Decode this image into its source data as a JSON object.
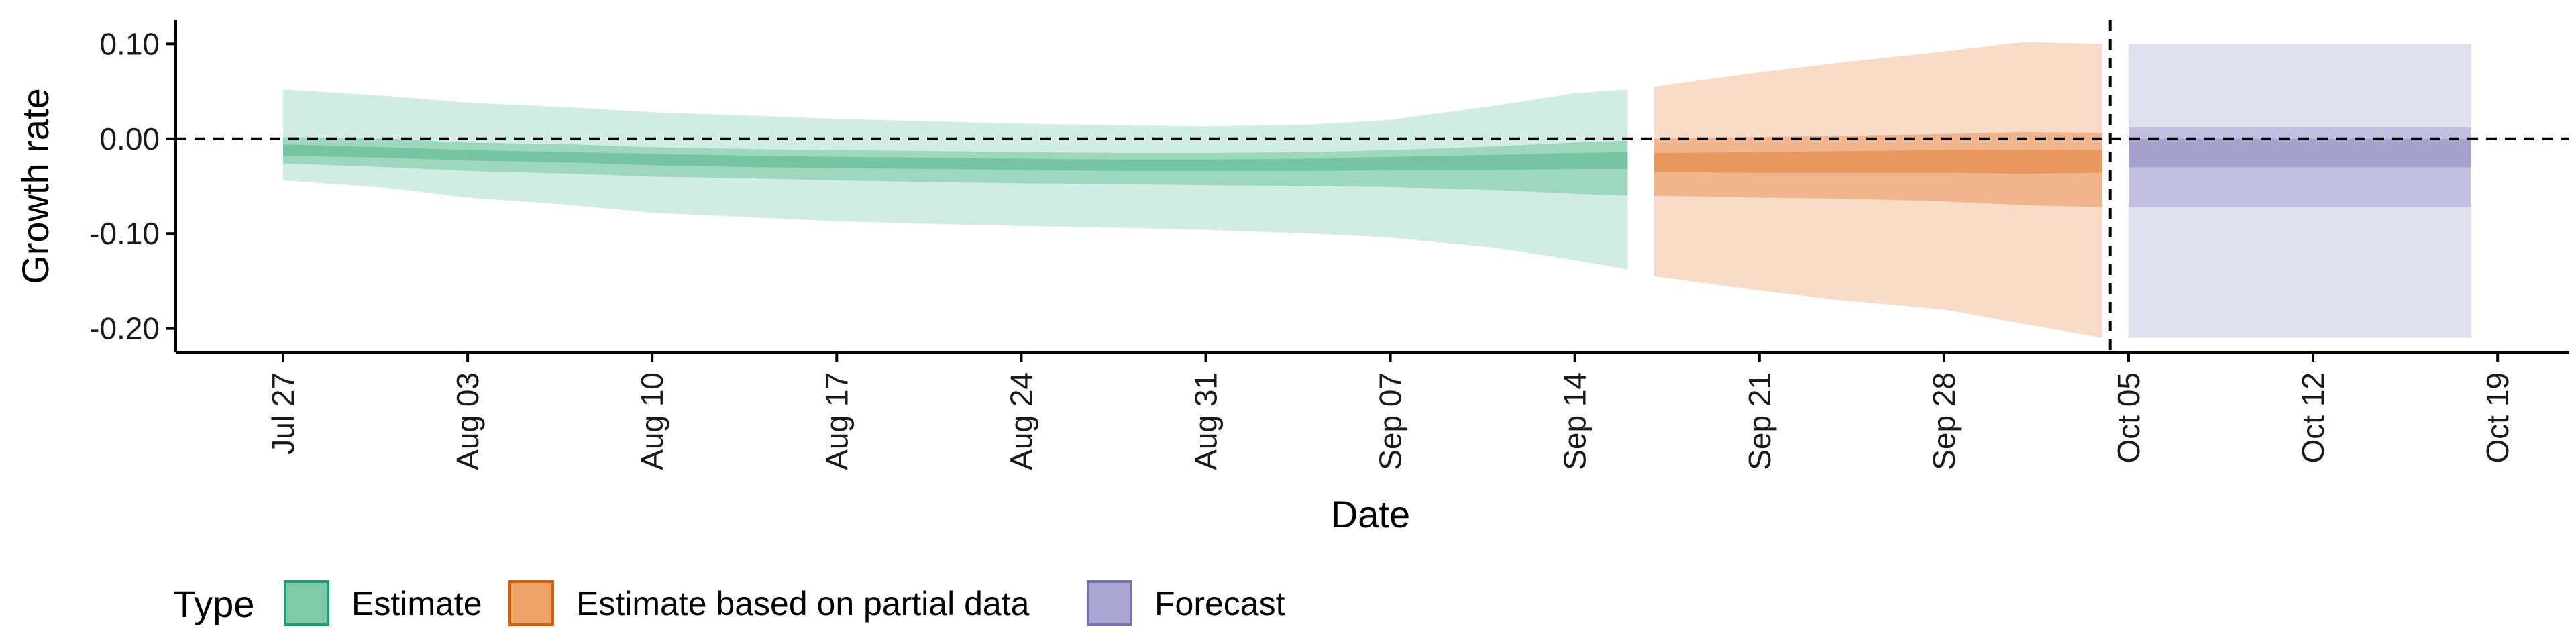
{
  "chart_data": {
    "type": "area",
    "xlabel": "Date",
    "ylabel": "Growth rate",
    "ylim": [
      -0.225,
      0.125
    ],
    "y_ticks": [
      0.1,
      0.0,
      -0.1,
      -0.2
    ],
    "y_tick_labels": [
      "0.10",
      "0.00",
      "-0.10",
      "-0.20"
    ],
    "x_range": [
      "2020-07-27",
      "2020-10-19"
    ],
    "x_ticks": [
      "2020-07-27",
      "2020-08-03",
      "2020-08-10",
      "2020-08-17",
      "2020-08-24",
      "2020-08-31",
      "2020-09-07",
      "2020-09-14",
      "2020-09-21",
      "2020-09-28",
      "2020-10-05",
      "2020-10-12",
      "2020-10-19"
    ],
    "x_tick_labels": [
      "Jul 27",
      "Aug 03",
      "Aug 10",
      "Aug 17",
      "Aug 24",
      "Aug 31",
      "Sep 07",
      "Sep 14",
      "Sep 21",
      "Sep 28",
      "Oct 05",
      "Oct 12",
      "Oct 19"
    ],
    "reference_line_y": 0,
    "reference_line_x": "2020-10-04",
    "grid": false,
    "legend": {
      "title": "Type",
      "position": "bottom-left",
      "items": [
        {
          "label": "Estimate",
          "fill": "#7ecaa9",
          "stroke": "#1b9e77"
        },
        {
          "label": "Estimate based on partial data",
          "fill": "#eda46a",
          "stroke": "#d95f02"
        },
        {
          "label": "Forecast",
          "fill": "#aaa8d3",
          "stroke": "#7570b3"
        }
      ]
    },
    "series": [
      {
        "name": "Estimate",
        "colors": {
          "outer": "#d1ece2",
          "inner": "#9dd7bf",
          "core": "#75c4a3"
        },
        "points": [
          {
            "x": "2020-07-27",
            "outer": [
              -0.044,
              0.052
            ],
            "inner": [
              -0.026,
              0.002
            ],
            "core": [
              -0.018,
              -0.006
            ]
          },
          {
            "x": "2020-07-31",
            "outer": [
              -0.052,
              0.045
            ],
            "inner": [
              -0.03,
              0.0
            ],
            "core": [
              -0.02,
              -0.009
            ]
          },
          {
            "x": "2020-08-03",
            "outer": [
              -0.062,
              0.038
            ],
            "inner": [
              -0.034,
              -0.004
            ],
            "core": [
              -0.023,
              -0.012
            ]
          },
          {
            "x": "2020-08-07",
            "outer": [
              -0.07,
              0.033
            ],
            "inner": [
              -0.037,
              -0.006
            ],
            "core": [
              -0.025,
              -0.014
            ]
          },
          {
            "x": "2020-08-10",
            "outer": [
              -0.078,
              0.028
            ],
            "inner": [
              -0.04,
              -0.009
            ],
            "core": [
              -0.028,
              -0.016
            ]
          },
          {
            "x": "2020-08-14",
            "outer": [
              -0.083,
              0.024
            ],
            "inner": [
              -0.042,
              -0.011
            ],
            "core": [
              -0.03,
              -0.018
            ]
          },
          {
            "x": "2020-08-17",
            "outer": [
              -0.087,
              0.021
            ],
            "inner": [
              -0.044,
              -0.012
            ],
            "core": [
              -0.031,
              -0.019
            ]
          },
          {
            "x": "2020-08-21",
            "outer": [
              -0.09,
              0.018
            ],
            "inner": [
              -0.046,
              -0.013
            ],
            "core": [
              -0.032,
              -0.02
            ]
          },
          {
            "x": "2020-08-24",
            "outer": [
              -0.092,
              0.016
            ],
            "inner": [
              -0.047,
              -0.014
            ],
            "core": [
              -0.033,
              -0.021
            ]
          },
          {
            "x": "2020-08-28",
            "outer": [
              -0.094,
              0.014
            ],
            "inner": [
              -0.048,
              -0.015
            ],
            "core": [
              -0.034,
              -0.022
            ]
          },
          {
            "x": "2020-08-31",
            "outer": [
              -0.096,
              0.013
            ],
            "inner": [
              -0.049,
              -0.015
            ],
            "core": [
              -0.034,
              -0.022
            ]
          },
          {
            "x": "2020-09-04",
            "outer": [
              -0.1,
              0.015
            ],
            "inner": [
              -0.05,
              -0.014
            ],
            "core": [
              -0.034,
              -0.021
            ]
          },
          {
            "x": "2020-09-07",
            "outer": [
              -0.104,
              0.02
            ],
            "inner": [
              -0.051,
              -0.012
            ],
            "core": [
              -0.033,
              -0.019
            ]
          },
          {
            "x": "2020-09-11",
            "outer": [
              -0.115,
              0.035
            ],
            "inner": [
              -0.054,
              -0.008
            ],
            "core": [
              -0.033,
              -0.017
            ]
          },
          {
            "x": "2020-09-14",
            "outer": [
              -0.128,
              0.048
            ],
            "inner": [
              -0.058,
              -0.004
            ],
            "core": [
              -0.032,
              -0.015
            ]
          },
          {
            "x": "2020-09-16",
            "outer": [
              -0.138,
              0.052
            ],
            "inner": [
              -0.06,
              -0.002
            ],
            "core": [
              -0.032,
              -0.014
            ]
          }
        ]
      },
      {
        "name": "Estimate based on partial data",
        "colors": {
          "outer": "#f8dcc7",
          "inner": "#f0b58c",
          "core": "#e8985f"
        },
        "points": [
          {
            "x": "2020-09-17",
            "outer": [
              -0.145,
              0.055
            ],
            "inner": [
              -0.06,
              0.0
            ],
            "core": [
              -0.035,
              -0.015
            ]
          },
          {
            "x": "2020-09-21",
            "outer": [
              -0.16,
              0.07
            ],
            "inner": [
              -0.062,
              0.002
            ],
            "core": [
              -0.036,
              -0.014
            ]
          },
          {
            "x": "2020-09-24",
            "outer": [
              -0.17,
              0.08
            ],
            "inner": [
              -0.063,
              0.003
            ],
            "core": [
              -0.036,
              -0.013
            ]
          },
          {
            "x": "2020-09-28",
            "outer": [
              -0.18,
              0.092
            ],
            "inner": [
              -0.066,
              0.005
            ],
            "core": [
              -0.036,
              -0.012
            ]
          },
          {
            "x": "2020-10-01",
            "outer": [
              -0.195,
              0.102
            ],
            "inner": [
              -0.07,
              0.007
            ],
            "core": [
              -0.037,
              -0.012
            ]
          },
          {
            "x": "2020-10-04",
            "outer": [
              -0.21,
              0.1
            ],
            "inner": [
              -0.072,
              0.006
            ],
            "core": [
              -0.036,
              -0.012
            ]
          }
        ]
      },
      {
        "name": "Forecast",
        "colors": {
          "outer": "#e1e0ee",
          "inner": "#c2bfe0",
          "core": "#a6a2d0"
        },
        "points": [
          {
            "x": "2020-10-05",
            "outer": [
              -0.21,
              0.1
            ],
            "inner": [
              -0.072,
              0.012
            ],
            "core": [
              -0.03,
              0.0
            ]
          },
          {
            "x": "2020-10-18",
            "outer": [
              -0.21,
              0.1
            ],
            "inner": [
              -0.072,
              0.012
            ],
            "core": [
              -0.03,
              0.0
            ]
          }
        ]
      }
    ]
  }
}
